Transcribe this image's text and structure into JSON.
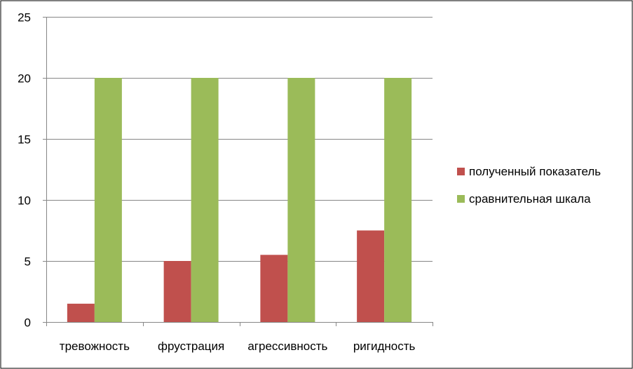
{
  "chart_data": {
    "type": "bar",
    "categories": [
      "тревожность",
      "фрустрация",
      "агрессивность",
      "ригидность"
    ],
    "series": [
      {
        "name": "полученный показатель",
        "values": [
          1.5,
          5,
          5.5,
          7.5
        ],
        "color": "#c0504d"
      },
      {
        "name": "сравнительная шкала",
        "values": [
          20,
          20,
          20,
          20
        ],
        "color": "#9bbb59"
      }
    ],
    "ylim": [
      0,
      25
    ],
    "yticks": [
      0,
      5,
      10,
      15,
      20,
      25
    ],
    "grid": true,
    "legend": "right"
  },
  "colors": {
    "frame_border": "#000000",
    "gridline": "#868686",
    "axis": "#868686"
  }
}
